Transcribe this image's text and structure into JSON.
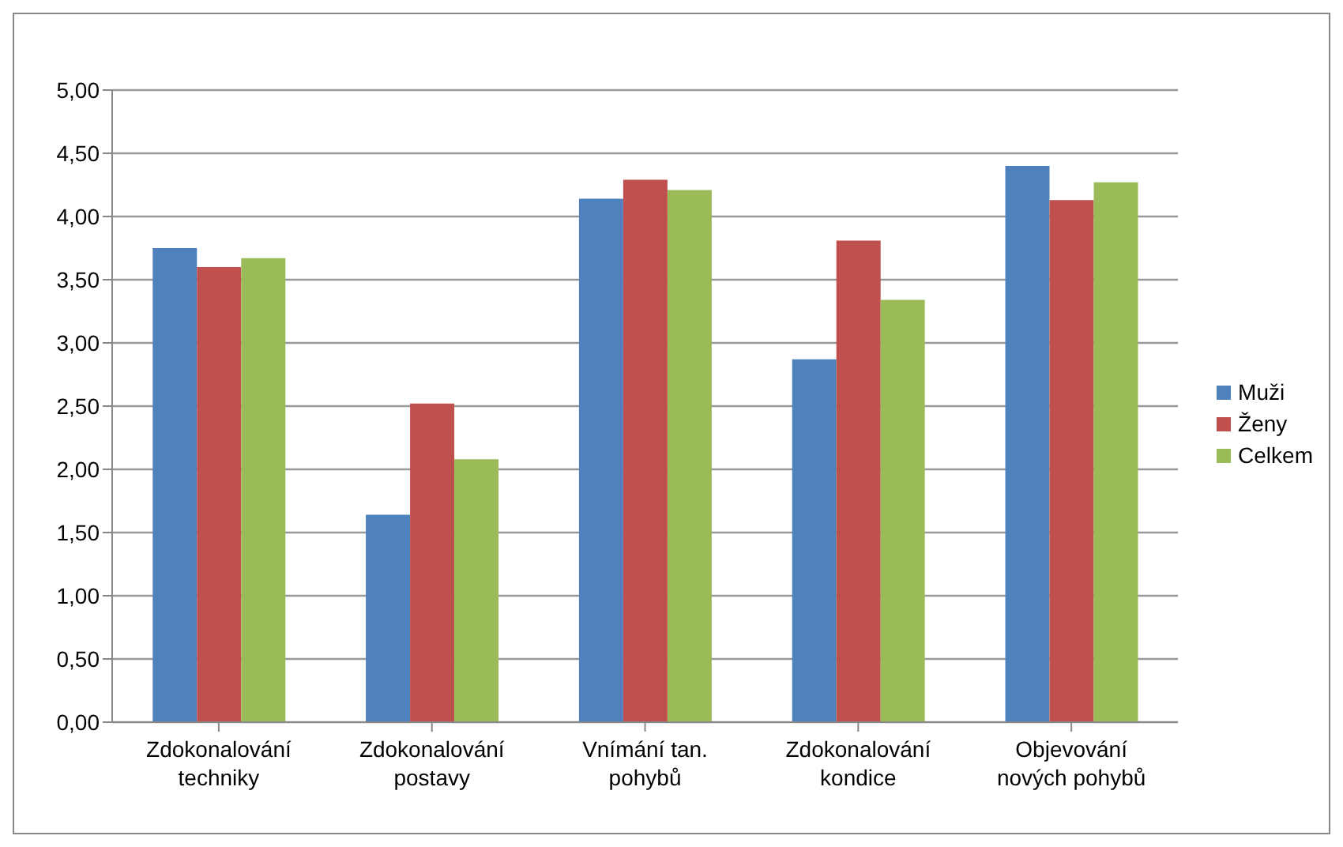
{
  "chart_data": {
    "type": "bar",
    "categories": [
      "Zdokonalování\ntechniky",
      "Zdokonalování\npostavy",
      "Vnímání tan.\npohybů",
      "Zdokonalování\nkondice",
      "Objevování\nnových pohybů"
    ],
    "series": [
      {
        "name": "Muži",
        "color": "#4f81bd",
        "values": [
          3.75,
          1.64,
          4.14,
          2.87,
          4.4
        ]
      },
      {
        "name": "Ženy",
        "color": "#c0504d",
        "values": [
          3.6,
          2.52,
          4.29,
          3.81,
          4.13
        ]
      },
      {
        "name": "Celkem",
        "color": "#9bbb59",
        "values": [
          3.67,
          2.08,
          4.21,
          3.34,
          4.27
        ]
      }
    ],
    "ylim": [
      0,
      5
    ],
    "yticks": [
      {
        "value": 0,
        "label": "0,00"
      },
      {
        "value": 0.5,
        "label": "0,50"
      },
      {
        "value": 1,
        "label": "1,00"
      },
      {
        "value": 1.5,
        "label": "1,50"
      },
      {
        "value": 2,
        "label": "2,00"
      },
      {
        "value": 2.5,
        "label": "2,50"
      },
      {
        "value": 3,
        "label": "3,00"
      },
      {
        "value": 3.5,
        "label": "3,50"
      },
      {
        "value": 4,
        "label": "4,00"
      },
      {
        "value": 4.5,
        "label": "4,50"
      },
      {
        "value": 5,
        "label": "5,00"
      }
    ],
    "grid": "y",
    "legend": "right"
  }
}
